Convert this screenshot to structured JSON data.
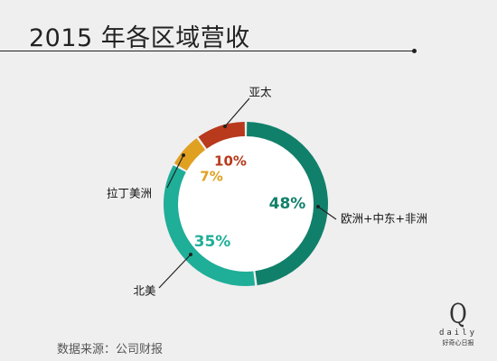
{
  "title": "2015 年各区域营收",
  "source": "数据来源：公司财报",
  "logo": {
    "letter": "Q",
    "word": "daily",
    "tagline": "好奇心日报"
  },
  "colors": {
    "background": "#efefef",
    "text": "#222222"
  },
  "chart_data": {
    "type": "pie",
    "variant": "donut",
    "title": "2015 年各区域营收",
    "start": "top",
    "direction": "clockwise",
    "slices": [
      {
        "name": "欧洲+中东+非洲",
        "value": 48,
        "label": "48%",
        "color": "#11806a"
      },
      {
        "name": "北美",
        "value": 35,
        "label": "35%",
        "color": "#1fae98"
      },
      {
        "name": "拉丁美洲",
        "value": 7,
        "label": "7%",
        "color": "#e0a020"
      },
      {
        "name": "亚太",
        "value": 10,
        "label": "10%",
        "color": "#b8391c"
      }
    ]
  }
}
